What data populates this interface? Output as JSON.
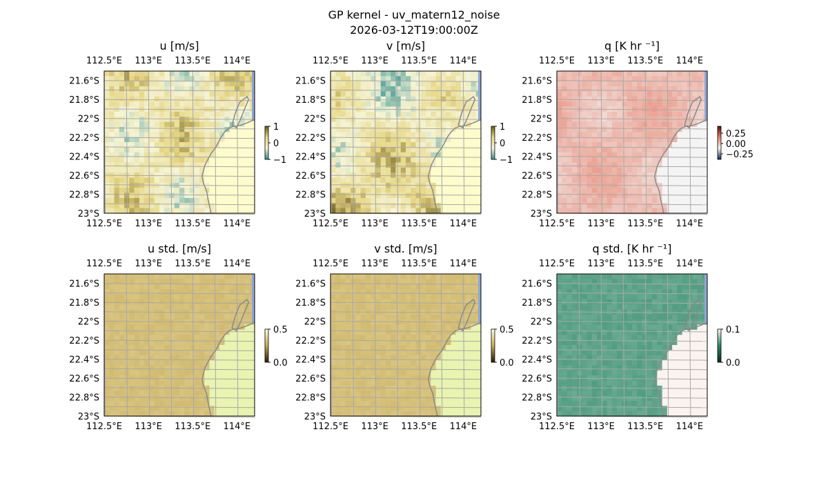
{
  "figure": {
    "title_line1": "GP kernel - uv_matern12_noise",
    "title_line2": "2026-03-12T19:00:00Z"
  },
  "chart_data": [
    {
      "type": "heatmap",
      "title": "u [m/s]",
      "x_ticklabels": [
        "112.5°E",
        "113°E",
        "113.5°E",
        "114°E"
      ],
      "x_ticks": [
        112.5,
        113.0,
        113.5,
        114.0
      ],
      "y_ticklabels": [
        "21.6°S",
        "21.8°S",
        "22°S",
        "22.2°S",
        "22.4°S",
        "22.6°S",
        "22.8°S",
        "23°S"
      ],
      "y_ticks": [
        -21.6,
        -21.8,
        -22.0,
        -22.2,
        -22.4,
        -22.6,
        -22.8,
        -23.0
      ],
      "xlim": [
        112.5,
        114.2
      ],
      "ylim": [
        -23.0,
        -21.5
      ],
      "colorbar": {
        "ticklabels": [
          "1",
          "0",
          "−1"
        ],
        "range": [
          -1,
          1
        ],
        "colors": [
          "#2f8f8a",
          "#f5f5d8",
          "#e8d888",
          "#6b5a14"
        ]
      },
      "land_color": "#fdfccc",
      "colormap": "diverging teal-yellow",
      "grid": true
    },
    {
      "type": "heatmap",
      "title": "v [m/s]",
      "x_ticklabels": [
        "112.5°E",
        "113°E",
        "113.5°E",
        "114°E"
      ],
      "x_ticks": [
        112.5,
        113.0,
        113.5,
        114.0
      ],
      "y_ticklabels": [
        "21.6°S",
        "21.8°S",
        "22°S",
        "22.2°S",
        "22.4°S",
        "22.6°S",
        "22.8°S",
        "23°S"
      ],
      "y_ticks": [
        -21.6,
        -21.8,
        -22.0,
        -22.2,
        -22.4,
        -22.6,
        -22.8,
        -23.0
      ],
      "xlim": [
        112.5,
        114.2
      ],
      "ylim": [
        -23.0,
        -21.5
      ],
      "colorbar": {
        "ticklabels": [
          "1",
          "0",
          "−1"
        ],
        "range": [
          -1,
          1
        ],
        "colors": [
          "#2f8f8a",
          "#f5f5d8",
          "#e8d888",
          "#6b5a14"
        ]
      },
      "land_color": "#fdfccc",
      "colormap": "diverging teal-yellow",
      "grid": true
    },
    {
      "type": "heatmap",
      "title": "q [K hr ⁻¹]",
      "x_ticklabels": [
        "112.5°E",
        "113°E",
        "113.5°E",
        "114°E"
      ],
      "x_ticks": [
        112.5,
        113.0,
        113.5,
        114.0
      ],
      "y_ticklabels": [
        "21.6°S",
        "21.8°S",
        "22°S",
        "22.2°S",
        "22.4°S",
        "22.6°S",
        "22.8°S",
        "23°S"
      ],
      "y_ticks": [
        -21.6,
        -21.8,
        -22.0,
        -22.2,
        -22.4,
        -22.6,
        -22.8,
        -23.0
      ],
      "xlim": [
        112.5,
        114.2
      ],
      "ylim": [
        -23.0,
        -21.5
      ],
      "colorbar": {
        "ticklabels": [
          "0.25",
          "0.00",
          "−0.25"
        ],
        "range": [
          -0.25,
          0.25
        ],
        "colors": [
          "#0c2a5a",
          "#f3f3f3",
          "#e8806a",
          "#5a0a0a"
        ]
      },
      "land_color": "#f4f4f4",
      "colormap": "diverging blue-red",
      "grid": true
    },
    {
      "type": "heatmap",
      "title": "u std. [m/s]",
      "x_ticklabels": [
        "112.5°E",
        "113°E",
        "113.5°E",
        "114°E"
      ],
      "x_ticks": [
        112.5,
        113.0,
        113.5,
        114.0
      ],
      "y_ticklabels": [
        "21.6°S",
        "21.8°S",
        "22°S",
        "22.2°S",
        "22.4°S",
        "22.6°S",
        "22.8°S",
        "23°S"
      ],
      "y_ticks": [
        -21.6,
        -21.8,
        -22.0,
        -22.2,
        -22.4,
        -22.6,
        -22.8,
        -23.0
      ],
      "xlim": [
        112.5,
        114.2
      ],
      "ylim": [
        -23.0,
        -21.5
      ],
      "colorbar": {
        "ticklabels": [
          "0.5",
          "0.0"
        ],
        "range": [
          0,
          0.5
        ],
        "colors": [
          "#2a1a00",
          "#c8ac58",
          "#ffffe0"
        ]
      },
      "land_color": "#e8f4b0",
      "colormap": "sequential brown",
      "grid": true
    },
    {
      "type": "heatmap",
      "title": "v std. [m/s]",
      "x_ticklabels": [
        "112.5°E",
        "113°E",
        "113.5°E",
        "114°E"
      ],
      "x_ticks": [
        112.5,
        113.0,
        113.5,
        114.0
      ],
      "y_ticklabels": [
        "21.6°S",
        "21.8°S",
        "22°S",
        "22.2°S",
        "22.4°S",
        "22.6°S",
        "22.8°S",
        "23°S"
      ],
      "y_ticks": [
        -21.6,
        -21.8,
        -22.0,
        -22.2,
        -22.4,
        -22.6,
        -22.8,
        -23.0
      ],
      "xlim": [
        112.5,
        114.2
      ],
      "ylim": [
        -23.0,
        -21.5
      ],
      "colorbar": {
        "ticklabels": [
          "0.5",
          "0.0"
        ],
        "range": [
          0,
          0.5
        ],
        "colors": [
          "#2a1a00",
          "#c8ac58",
          "#ffffe0"
        ]
      },
      "land_color": "#e8f4b0",
      "colormap": "sequential brown",
      "grid": true
    },
    {
      "type": "heatmap",
      "title": "q std. [K hr ⁻¹]",
      "x_ticklabels": [
        "112.5°E",
        "113°E",
        "113.5°E",
        "114°E"
      ],
      "x_ticks": [
        112.5,
        113.0,
        113.5,
        114.0
      ],
      "y_ticklabels": [
        "21.6°S",
        "21.8°S",
        "22°S",
        "22.2°S",
        "22.4°S",
        "22.6°S",
        "22.8°S",
        "23°S"
      ],
      "y_ticks": [
        -21.6,
        -21.8,
        -22.0,
        -22.2,
        -22.4,
        -22.6,
        -22.8,
        -23.0
      ],
      "xlim": [
        112.5,
        114.2
      ],
      "ylim": [
        -23.0,
        -21.5
      ],
      "colorbar": {
        "ticklabels": [
          "0.1",
          "0.0"
        ],
        "range": [
          0,
          0.1
        ],
        "colors": [
          "#0a2a1a",
          "#2a8a6a",
          "#fff5f0"
        ]
      },
      "land_color": "#fbf3f0",
      "colormap": "sequential green",
      "grid": true
    }
  ]
}
